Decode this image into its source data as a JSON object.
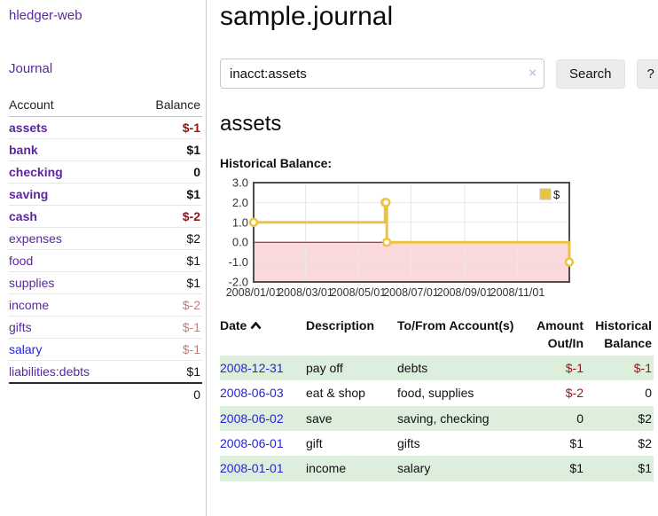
{
  "sidebar": {
    "brand": "hledger-web",
    "nav": {
      "journal": "Journal"
    },
    "accounts": {
      "headers": [
        "Account",
        "Balance"
      ],
      "rows": [
        {
          "name": "assets",
          "balance": "$-1",
          "indent": 1,
          "bold": true
        },
        {
          "name": "bank",
          "balance": "$1",
          "indent": 2,
          "bold": true
        },
        {
          "name": "checking",
          "balance": "0",
          "indent": 3,
          "bold": true
        },
        {
          "name": "saving",
          "balance": "$1",
          "indent": 3,
          "bold": true
        },
        {
          "name": "cash",
          "balance": "$-2",
          "indent": 2,
          "bold": true
        },
        {
          "name": "expenses",
          "balance": "$2",
          "indent": 1,
          "bold": false
        },
        {
          "name": "food",
          "balance": "$1",
          "indent": 2,
          "bold": false
        },
        {
          "name": "supplies",
          "balance": "$1",
          "indent": 2,
          "bold": false
        },
        {
          "name": "income",
          "balance": "$-2",
          "indent": 1,
          "bold": false
        },
        {
          "name": "gifts",
          "balance": "$-1",
          "indent": 2,
          "bold": false
        },
        {
          "name": "salary",
          "balance": "$-1",
          "indent": 2,
          "bold": false,
          "unvisited": true
        },
        {
          "name": "liabilities:debts",
          "balance": "$1",
          "indent": 1,
          "bold": false
        }
      ],
      "total": "0"
    }
  },
  "main": {
    "title": "sample.journal",
    "search": {
      "value": "inacct:assets",
      "clear_icon": "×",
      "search_label": "Search",
      "help_label": "?"
    },
    "account_heading": "assets",
    "register": {
      "headers": {
        "date": "Date",
        "description": "Description",
        "accounts": "To/From Account(s)",
        "amount": "Amount Out/In",
        "balance": "Historical Balance"
      },
      "rows": [
        {
          "date": "2008-12-31",
          "description": "pay off",
          "accounts": "debts",
          "amount": "$-1",
          "balance": "$-1"
        },
        {
          "date": "2008-06-03",
          "description": "eat & shop",
          "accounts": "food, supplies",
          "amount": "$-2",
          "balance": "0"
        },
        {
          "date": "2008-06-02",
          "description": "save",
          "accounts": "saving, checking",
          "amount": "0",
          "balance": "$2"
        },
        {
          "date": "2008-06-01",
          "description": "gift",
          "accounts": "gifts",
          "amount": "$1",
          "balance": "$2"
        },
        {
          "date": "2008-01-01",
          "description": "income",
          "accounts": "salary",
          "amount": "$1",
          "balance": "$1"
        }
      ]
    }
  },
  "chart_data": {
    "type": "line",
    "title": "Historical Balance:",
    "step": true,
    "x_range": [
      "2008-01-01",
      "2008-12-31"
    ],
    "ylim": [
      -2,
      3
    ],
    "yticks": [
      3,
      2,
      1,
      0,
      -1,
      -2
    ],
    "xticks": [
      {
        "date": "2008-01-01",
        "label": "2008/01/01"
      },
      {
        "date": "2008-03-01",
        "label": "2008/03/01"
      },
      {
        "date": "2008-05-01",
        "label": "2008/05/01"
      },
      {
        "date": "2008-07-01",
        "label": "2008/07/01"
      },
      {
        "date": "2008-09-01",
        "label": "2008/09/01"
      },
      {
        "date": "2008-11-01",
        "label": "2008/11/01"
      }
    ],
    "series": [
      {
        "name": "$",
        "color": "#edc240",
        "points": [
          [
            "2008-01-01",
            1
          ],
          [
            "2008-06-01",
            2
          ],
          [
            "2008-06-02",
            2
          ],
          [
            "2008-06-03",
            0
          ],
          [
            "2008-12-31",
            -1
          ]
        ]
      }
    ],
    "legend_position": "top-right",
    "negative_band_color": "#f9d9d9",
    "zero_line_color": "#a60000",
    "grid_color": "#e8e8e8",
    "border_color": "#4d4d4d"
  }
}
